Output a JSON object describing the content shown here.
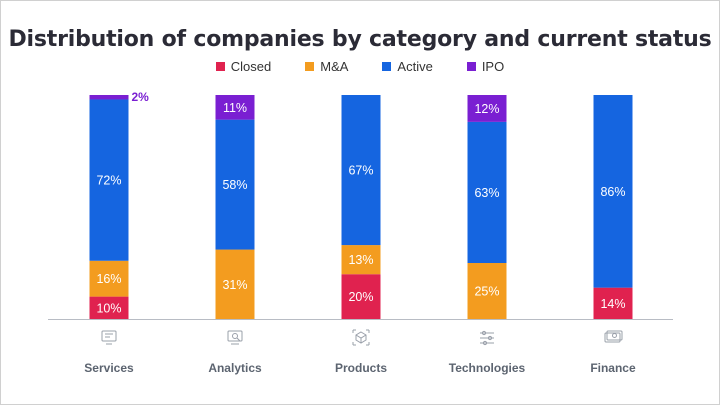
{
  "chart_data": {
    "type": "bar",
    "stacked": true,
    "title": "Distribution of companies by category and current status",
    "categories": [
      "Services",
      "Analytics",
      "Products",
      "Technologies",
      "Finance"
    ],
    "category_icons": [
      "monitor-icon",
      "magnifier-screen-icon",
      "cube-scan-icon",
      "sliders-icon",
      "money-icon"
    ],
    "legend_position": "top",
    "series": [
      {
        "name": "Closed",
        "color": "#e0224f",
        "values": [
          10,
          0,
          20,
          0,
          14
        ],
        "labels": [
          "10%",
          "",
          "20%",
          "",
          "14%"
        ]
      },
      {
        "name": "M&A",
        "color": "#f39c1f",
        "values": [
          16,
          31,
          13,
          25,
          0
        ],
        "labels": [
          "16%",
          "31%",
          "13%",
          "25%",
          ""
        ]
      },
      {
        "name": "Active",
        "color": "#1565e0",
        "values": [
          72,
          58,
          67,
          63,
          86
        ],
        "labels": [
          "72%",
          "58%",
          "67%",
          "63%",
          "86%"
        ]
      },
      {
        "name": "IPO",
        "color": "#7a1fd2",
        "values": [
          2,
          11,
          0,
          12,
          0
        ],
        "labels": [
          "2%",
          "11%",
          "",
          "12%",
          ""
        ]
      }
    ]
  }
}
